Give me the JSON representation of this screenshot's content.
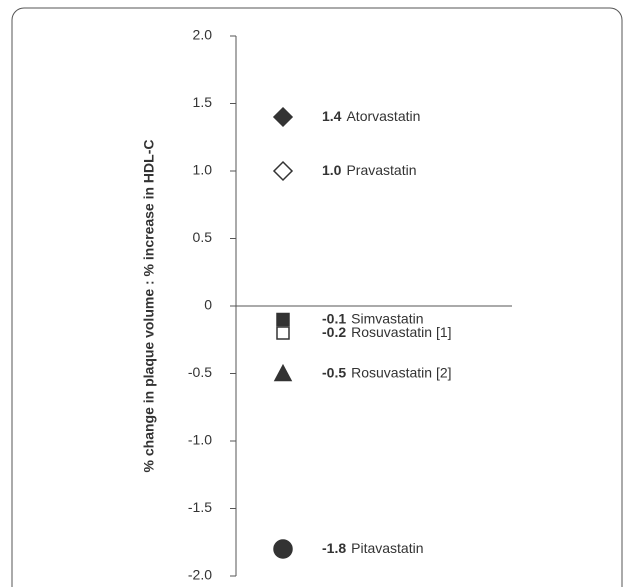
{
  "chart_data": {
    "type": "scatter",
    "y_label": "% change in plaque volume : % increase in HDL-C",
    "categories": [
      "Atorvastatin",
      "Pravastatin",
      "Simvastatin",
      "Rosuvastatin [1]",
      "Rosuvastatin [2]",
      "Pitavastatin"
    ],
    "values": [
      1.4,
      1.0,
      -0.1,
      -0.2,
      -0.5,
      -1.8
    ],
    "value_labels": [
      "1.4",
      "1.0",
      "-0.1",
      "-0.2",
      "-0.5",
      "-1.8"
    ],
    "markers": [
      "D",
      "D",
      "s",
      "s",
      "^",
      "o"
    ],
    "filled": [
      true,
      false,
      true,
      false,
      true,
      true
    ],
    "color": "#333333",
    "ylim": [
      -2,
      2
    ],
    "yticks": [
      {
        "value": 2,
        "label": "2.0"
      },
      1.5,
      {
        "value": 1,
        "label": "1.0"
      },
      0.5,
      0,
      -0.5,
      {
        "value": -1,
        "label": "-1.0"
      },
      -1.5,
      {
        "value": -2,
        "label": "-2.0"
      }
    ]
  }
}
